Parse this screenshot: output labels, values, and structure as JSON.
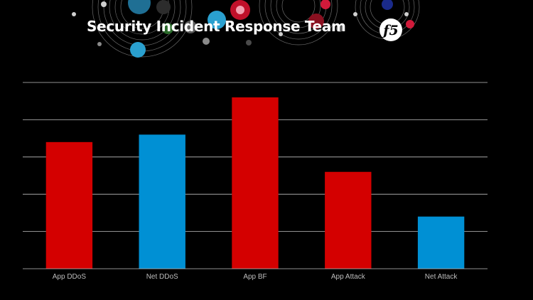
{
  "slide": {
    "title": "Security Incident Response Team"
  },
  "logo": {
    "name": "f5-logo",
    "text": "f5"
  },
  "colors": {
    "background": "#000000",
    "red": "#d40000",
    "blue": "#0090d4",
    "grid": "#bfbfbf",
    "title": "#ffffff"
  },
  "chart_data": {
    "type": "bar",
    "categories": [
      "App DDoS",
      "Net DDoS",
      "App BF",
      "App Attack",
      "Net Attack"
    ],
    "values": [
      3.4,
      3.6,
      4.6,
      2.6,
      1.4
    ],
    "bar_colors": [
      "#d40000",
      "#0090d4",
      "#d40000",
      "#d40000",
      "#0090d4"
    ],
    "ylim": [
      0,
      5
    ],
    "grid": true,
    "title": "",
    "xlabel": "",
    "ylabel": ""
  }
}
